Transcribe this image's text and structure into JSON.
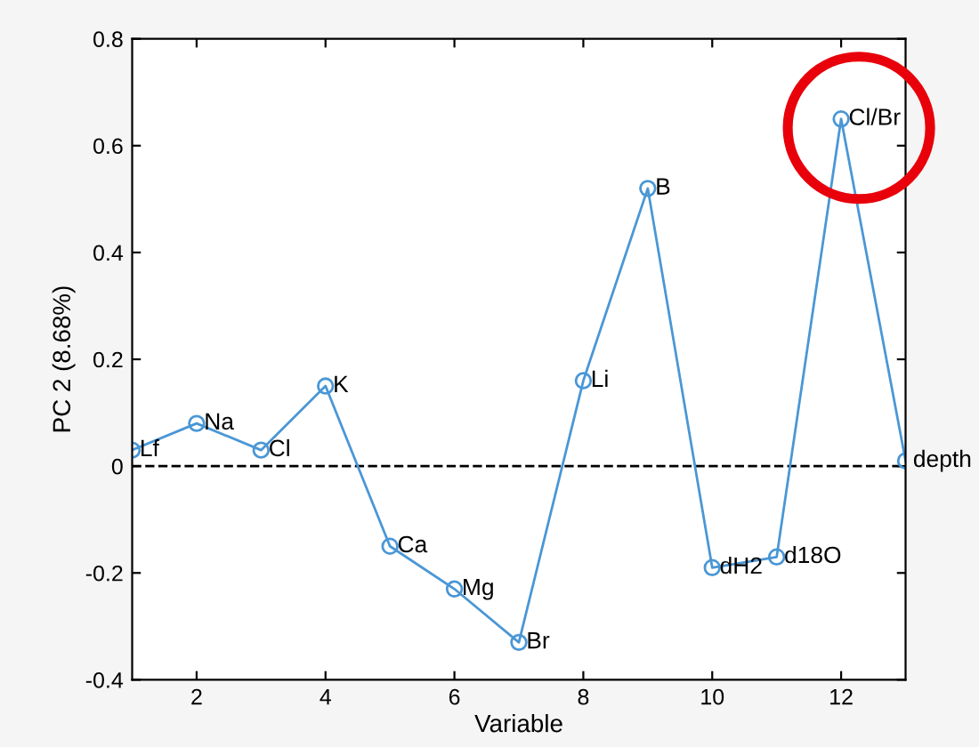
{
  "chart_data": {
    "type": "line",
    "xlabel": "Variable",
    "ylabel": "PC 2 (8.68%)",
    "x": [
      1,
      2,
      3,
      4,
      5,
      6,
      7,
      8,
      9,
      10,
      11,
      12,
      13
    ],
    "series": [
      {
        "color": "#4a97d6",
        "values": [
          0.03,
          0.08,
          0.03,
          0.15,
          -0.15,
          -0.23,
          -0.33,
          0.16,
          0.52,
          -0.19,
          -0.17,
          0.65,
          0.01
        ]
      }
    ],
    "marker": "circle",
    "line_style": "solid",
    "grid": false,
    "legend": false,
    "xlim": [
      1,
      13
    ],
    "xticks": [
      2,
      4,
      6,
      8,
      10,
      12
    ],
    "ylim": [
      -0.4,
      0.8
    ],
    "yticks": [
      -0.4,
      -0.2,
      0,
      0.2,
      0.4,
      0.6,
      0.8
    ],
    "ref_lines": [
      {
        "axis": "y",
        "value": 0,
        "color": "#000000",
        "line_style": "dashed"
      }
    ],
    "annotations": [
      {
        "text": "Lf",
        "x": 1,
        "y": 0.03
      },
      {
        "text": "Na",
        "x": 2,
        "y": 0.08
      },
      {
        "text": "Cl",
        "x": 3,
        "y": 0.03
      },
      {
        "text": "K",
        "x": 4,
        "y": 0.15
      },
      {
        "text": "Ca",
        "x": 5,
        "y": -0.15
      },
      {
        "text": "Mg",
        "x": 6,
        "y": -0.23
      },
      {
        "text": "Br",
        "x": 7,
        "y": -0.33
      },
      {
        "text": "Li",
        "x": 8,
        "y": 0.16
      },
      {
        "text": "B",
        "x": 9,
        "y": 0.52
      },
      {
        "text": "dH2",
        "x": 10,
        "y": -0.19
      },
      {
        "text": "d18O",
        "x": 11,
        "y": -0.17
      },
      {
        "text": "Cl/Br",
        "x": 12,
        "y": 0.65
      },
      {
        "text": "depth",
        "x": 13,
        "y": 0.01
      }
    ]
  }
}
